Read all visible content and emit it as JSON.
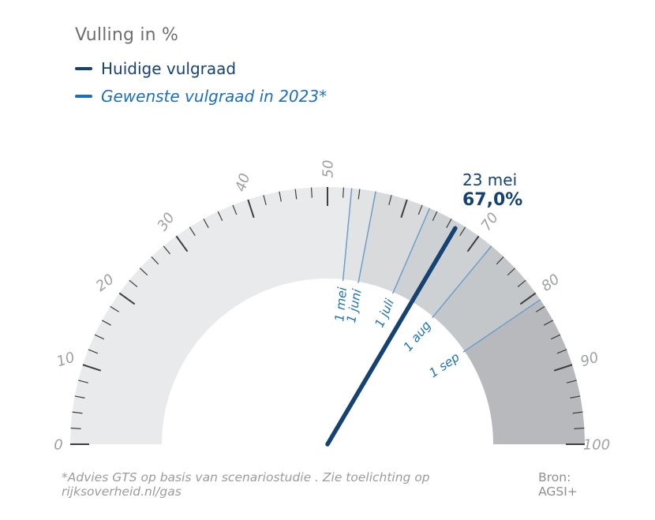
{
  "title": "Vulling in %",
  "legend": {
    "items": [
      {
        "label": "Huidige vulgraad",
        "color": "#154273",
        "italic": false
      },
      {
        "label": "Gewenste vulgraad in 2023*",
        "color": "#1d6fb7",
        "italic": true
      }
    ]
  },
  "footer": {
    "note": "*Advies GTS op basis van scenariostudie . Zie toelichting op rijksoverheid.nl/gas",
    "source": "Bron: AGSI+"
  },
  "chart_data": {
    "type": "gauge",
    "title": "Vulling in %",
    "min": 0,
    "max": 100,
    "tick_minor": 2,
    "tick_major": 10,
    "axis_labels": [
      0,
      10,
      20,
      30,
      40,
      50,
      70,
      80,
      90,
      100
    ],
    "current": {
      "label": "23 mei",
      "value": 67.0,
      "value_label": "67,0%"
    },
    "targets": [
      {
        "label": "1 mei",
        "value": 53
      },
      {
        "label": "1 juni",
        "value": 56
      },
      {
        "label": "1 juli",
        "value": 63
      },
      {
        "label": "1 aug",
        "value": 72
      },
      {
        "label": "1 sep",
        "value": 81
      }
    ],
    "bands": [
      {
        "from": 0,
        "to": 53,
        "color": "#e9eaeb"
      },
      {
        "from": 53,
        "to": 56,
        "color": "#e1e3e5"
      },
      {
        "from": 56,
        "to": 63,
        "color": "#d8dadc"
      },
      {
        "from": 63,
        "to": 72,
        "color": "#ced1d3"
      },
      {
        "from": 72,
        "to": 81,
        "color": "#c4c7c9"
      },
      {
        "from": 81,
        "to": 100,
        "color": "#b7b9bc"
      }
    ],
    "style": {
      "needle_color": "#154273",
      "target_line_color": "#6f9ecb",
      "target_label_color": "#1f72b5",
      "tick_color": "#3c3e41",
      "axis_label_color": "#9ea0a2"
    }
  }
}
